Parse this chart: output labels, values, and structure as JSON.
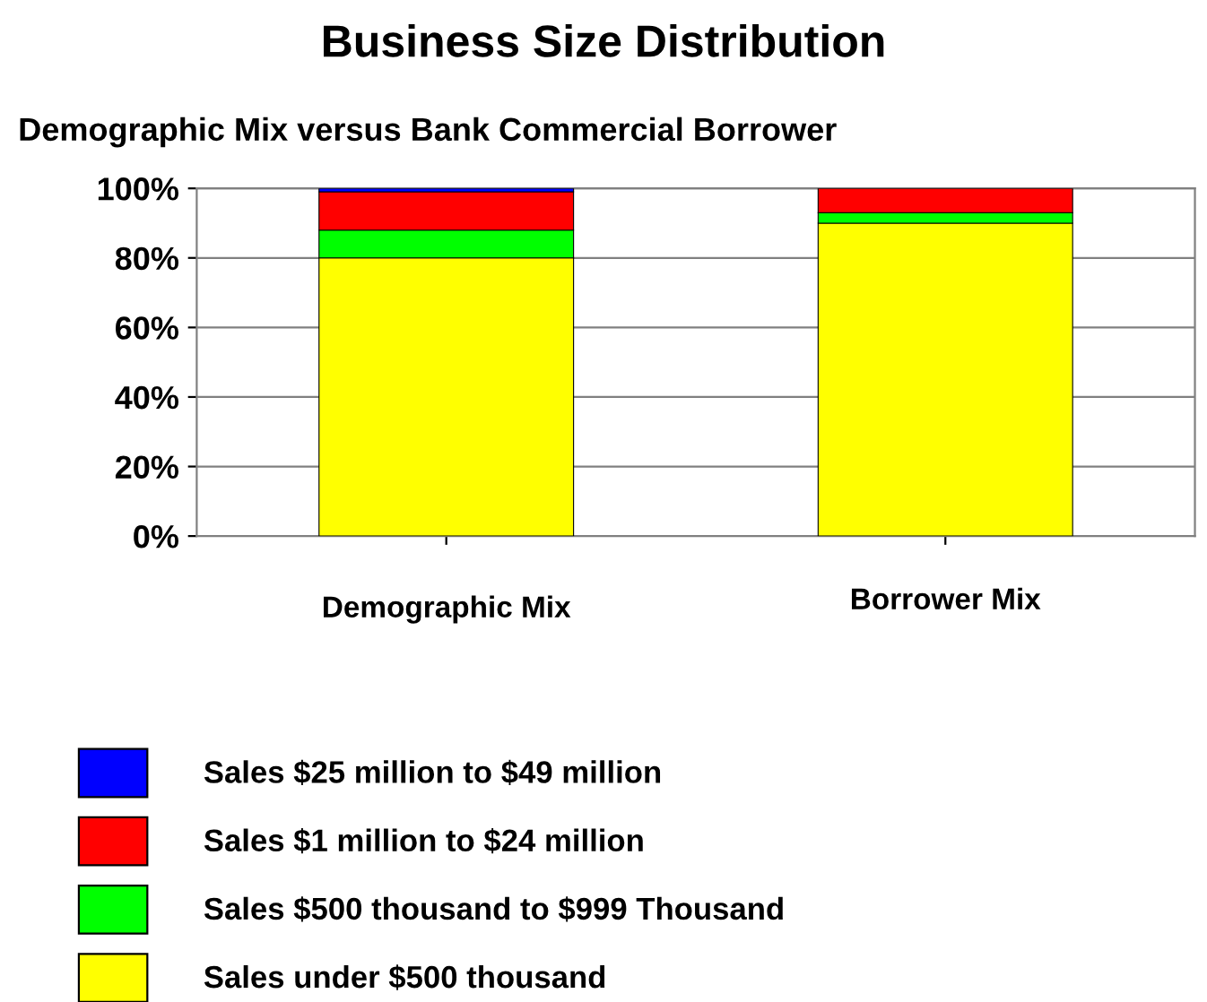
{
  "chart_data": {
    "type": "bar",
    "title": "Business Size Distribution",
    "subtitle": "Demographic Mix versus Bank Commercial Borrower",
    "categories": [
      "Demographic Mix",
      "Borrower Mix"
    ],
    "stacked": true,
    "series": [
      {
        "name": "Sales under $500 thousand",
        "color": "#ffff00",
        "values": [
          80,
          90
        ]
      },
      {
        "name": "Sales $500 thousand to $999 Thousand",
        "color": "#00ff00",
        "values": [
          8,
          3
        ]
      },
      {
        "name": "Sales $1 million to $24 million",
        "color": "#ff0000",
        "values": [
          11,
          7
        ]
      },
      {
        "name": "Sales $25 million to $49 million",
        "color": "#0000ff",
        "values": [
          1,
          null
        ]
      }
    ],
    "ylim": [
      0,
      100
    ],
    "yticks": [
      {
        "value": 0,
        "label": "0%"
      },
      {
        "value": 20,
        "label": "20%"
      },
      {
        "value": 40,
        "label": "40%"
      },
      {
        "value": 60,
        "label": "60%"
      },
      {
        "value": 80,
        "label": "80%"
      },
      {
        "value": 100,
        "label": "100%"
      }
    ],
    "grid": "y",
    "legend": "bottom"
  }
}
